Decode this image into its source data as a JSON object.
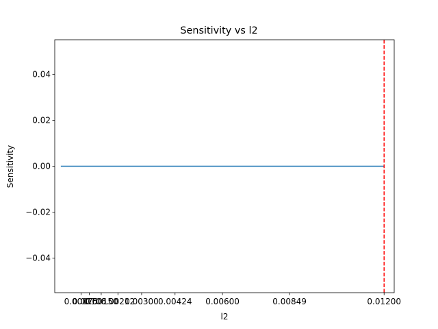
{
  "chart_data": {
    "type": "line",
    "title": "Sensitivity vs l2",
    "xlabel": "l2",
    "ylabel": "Sensitivity",
    "xlim": [
      -0.000225,
      0.012375
    ],
    "ylim": [
      -0.055,
      0.055
    ],
    "x_ticks": [
      0.00075,
      0.00106,
      0.0015,
      0.00212,
      0.003,
      0.00424,
      0.006,
      0.00849,
      0.012
    ],
    "x_tick_labels": [
      "0.00075",
      "0.00106",
      "0.00150",
      "0.00212",
      "0.00300",
      "0.00424",
      "0.00600",
      "0.00849",
      "0.01200"
    ],
    "y_ticks": [
      -0.04,
      -0.02,
      0.0,
      0.02,
      0.04
    ],
    "y_tick_labels": [
      "−0.04",
      "−0.02",
      "0.00",
      "0.02",
      "0.04"
    ],
    "series": [
      {
        "color": "#1f77b4",
        "x": [
          0.0,
          0.00075,
          0.00106,
          0.0015,
          0.00212,
          0.003,
          0.00424,
          0.006,
          0.00849,
          0.012
        ],
        "y": [
          0,
          0,
          0,
          0,
          0,
          0,
          0,
          0,
          0,
          0
        ]
      }
    ],
    "vline": {
      "x": 0.012,
      "color": "#ff0000",
      "style": "dashed"
    },
    "grid": false,
    "legend": "none"
  }
}
